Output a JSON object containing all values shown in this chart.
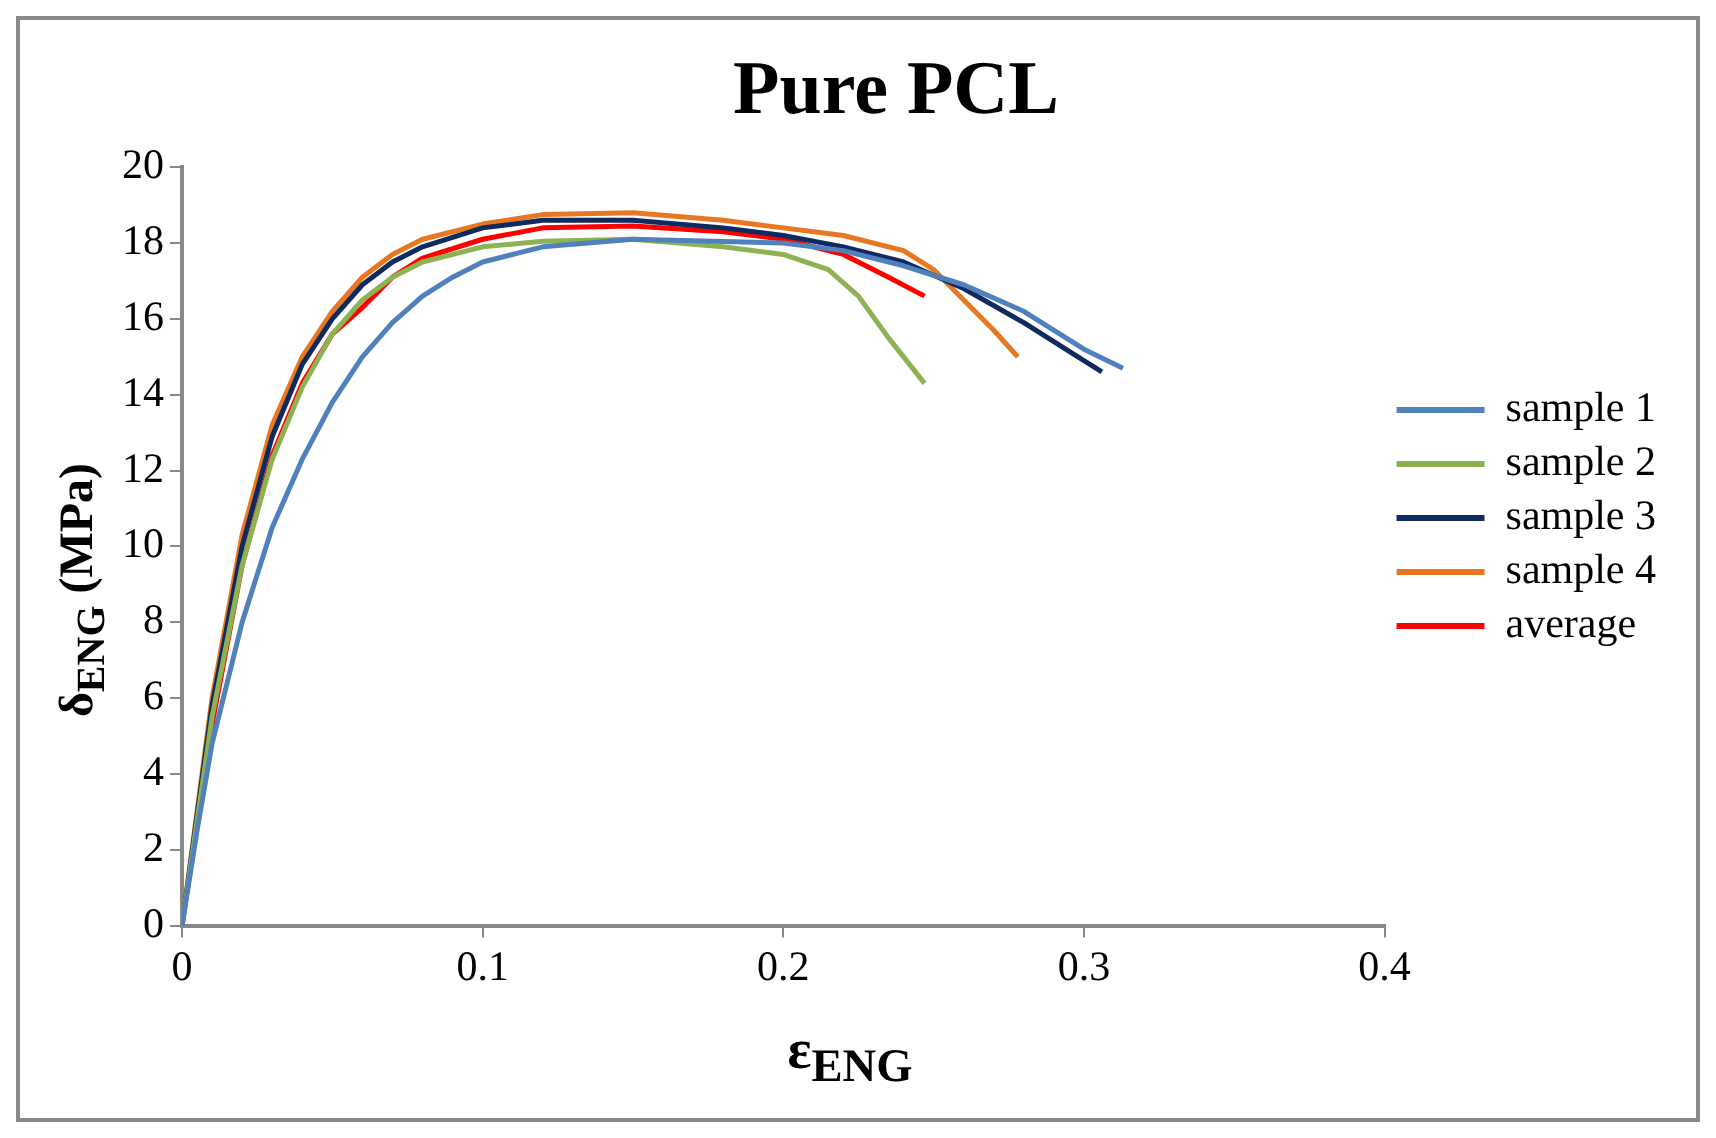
{
  "chart_data": {
    "type": "line",
    "title": "Pure PCL",
    "xlabel": "ε$_{ENG}$",
    "ylabel": "δ$_{ENG}$ (MPa)",
    "xlim": [
      0,
      0.4
    ],
    "xticks": [
      0,
      0.1,
      0.2,
      0.3,
      0.4
    ],
    "ylim": [
      0,
      20
    ],
    "yticks": [
      0,
      2,
      4,
      6,
      8,
      10,
      12,
      14,
      16,
      18,
      20
    ],
    "grid": false,
    "legend": "right",
    "marker": "none",
    "line_style": "solid",
    "series": [
      {
        "name": "sample 1",
        "color": "#4f81bd",
        "x": [
          0,
          0.005,
          0.01,
          0.02,
          0.03,
          0.04,
          0.05,
          0.06,
          0.07,
          0.08,
          0.09,
          0.1,
          0.12,
          0.15,
          0.2,
          0.22,
          0.24,
          0.26,
          0.28,
          0.3,
          0.313
        ],
        "values": [
          0,
          2.5,
          4.8,
          8,
          10.5,
          12.3,
          13.8,
          15,
          15.9,
          16.6,
          17.1,
          17.5,
          17.9,
          18.1,
          18.0,
          17.8,
          17.4,
          16.9,
          16.2,
          15.2,
          14.7
        ]
      },
      {
        "name": "sample 2",
        "color": "#8db254",
        "x": [
          0,
          0.01,
          0.02,
          0.03,
          0.04,
          0.05,
          0.06,
          0.07,
          0.08,
          0.1,
          0.12,
          0.15,
          0.18,
          0.2,
          0.215,
          0.225,
          0.235,
          0.247
        ],
        "values": [
          0,
          5.5,
          9.5,
          12.3,
          14.2,
          15.6,
          16.5,
          17.1,
          17.5,
          17.9,
          18.05,
          18.1,
          17.9,
          17.7,
          17.3,
          16.6,
          15.5,
          14.3
        ]
      },
      {
        "name": "sample 3",
        "color": "#0e2a5e",
        "x": [
          0,
          0.01,
          0.02,
          0.03,
          0.04,
          0.05,
          0.06,
          0.07,
          0.08,
          0.1,
          0.12,
          0.15,
          0.18,
          0.2,
          0.22,
          0.24,
          0.26,
          0.28,
          0.3,
          0.306
        ],
        "values": [
          0,
          5.8,
          10,
          12.9,
          14.8,
          16,
          16.9,
          17.5,
          17.9,
          18.4,
          18.6,
          18.6,
          18.4,
          18.2,
          17.9,
          17.5,
          16.8,
          15.9,
          14.9,
          14.6
        ]
      },
      {
        "name": "sample 4",
        "color": "#e87722",
        "x": [
          0,
          0.01,
          0.02,
          0.03,
          0.04,
          0.05,
          0.06,
          0.07,
          0.08,
          0.1,
          0.12,
          0.15,
          0.18,
          0.2,
          0.22,
          0.24,
          0.25,
          0.26,
          0.27,
          0.278
        ],
        "values": [
          0,
          6,
          10.3,
          13.2,
          15,
          16.2,
          17.1,
          17.7,
          18.1,
          18.5,
          18.75,
          18.8,
          18.6,
          18.4,
          18.2,
          17.8,
          17.3,
          16.5,
          15.7,
          15.0
        ]
      },
      {
        "name": "average",
        "color": "#ff0000",
        "x": [
          0,
          0.01,
          0.02,
          0.03,
          0.04,
          0.05,
          0.06,
          0.07,
          0.08,
          0.1,
          0.12,
          0.15,
          0.18,
          0.2,
          0.22,
          0.235,
          0.247
        ],
        "values": [
          0,
          5.3,
          9.5,
          12.4,
          14.3,
          15.6,
          16.3,
          17.1,
          17.6,
          18.1,
          18.4,
          18.45,
          18.3,
          18.1,
          17.7,
          17.1,
          16.6
        ]
      }
    ]
  }
}
